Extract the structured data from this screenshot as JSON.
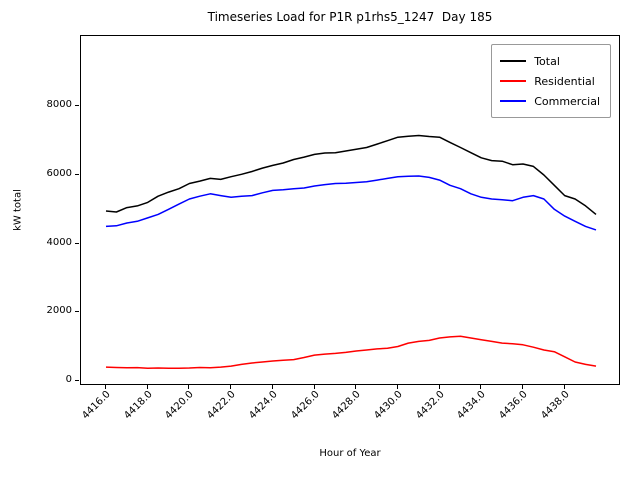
{
  "figure": {
    "title": "Timeseries Load for P1R p1rhs5_1247  Day 185",
    "xlabel": "Hour of Year",
    "ylabel": "kW total"
  },
  "chart_data": {
    "type": "line",
    "title": "Timeseries Load for P1R p1rhs5_1247  Day 185",
    "xlabel": "Hour of Year",
    "ylabel": "kW total",
    "grid": false,
    "legend_position": "upper right",
    "xlim": [
      4414.8,
      4440.7
    ],
    "ylim": [
      -150,
      10050
    ],
    "x_ticks": [
      4416,
      4418,
      4420,
      4422,
      4424,
      4426,
      4428,
      4430,
      4432,
      4434,
      4436,
      4438
    ],
    "x_tick_labels": [
      "4416.0",
      "4418.0",
      "4420.0",
      "4422.0",
      "4424.0",
      "4426.0",
      "4428.0",
      "4430.0",
      "4432.0",
      "4434.0",
      "4436.0",
      "4438.0"
    ],
    "y_ticks": [
      0,
      2000,
      4000,
      6000,
      8000
    ],
    "y_tick_labels": [
      "0",
      "2000",
      "4000",
      "6000",
      "8000"
    ],
    "x": [
      4416.0,
      4416.5,
      4417.0,
      4417.5,
      4418.0,
      4418.5,
      4419.0,
      4419.5,
      4420.0,
      4420.5,
      4421.0,
      4421.5,
      4422.0,
      4422.5,
      4423.0,
      4423.5,
      4424.0,
      4424.5,
      4425.0,
      4425.5,
      4426.0,
      4426.5,
      4427.0,
      4427.5,
      4428.0,
      4428.5,
      4429.0,
      4429.5,
      4430.0,
      4430.5,
      4431.0,
      4431.5,
      4432.0,
      4432.5,
      4433.0,
      4433.5,
      4434.0,
      4434.5,
      4435.0,
      4435.5,
      4436.0,
      4436.5,
      4437.0,
      4437.5,
      4438.0,
      4438.5,
      4439.0,
      4439.5
    ],
    "series": [
      {
        "name": "Total",
        "color": "#000000",
        "values": [
          4950,
          4920,
          5050,
          5100,
          5200,
          5380,
          5500,
          5600,
          5750,
          5820,
          5900,
          5870,
          5950,
          6020,
          6100,
          6200,
          6280,
          6350,
          6450,
          6520,
          6600,
          6640,
          6650,
          6700,
          6750,
          6800,
          6900,
          7000,
          7100,
          7130,
          7150,
          7120,
          7100,
          6950,
          6800,
          6650,
          6500,
          6420,
          6400,
          6300,
          6320,
          6250,
          6000,
          5700,
          5400,
          5300,
          5100,
          4850
        ]
      },
      {
        "name": "Residential",
        "color": "#ff0000",
        "values": [
          400,
          390,
          380,
          385,
          370,
          375,
          365,
          370,
          375,
          390,
          380,
          400,
          430,
          480,
          520,
          550,
          580,
          600,
          620,
          680,
          750,
          780,
          800,
          830,
          870,
          900,
          930,
          950,
          1000,
          1100,
          1150,
          1180,
          1250,
          1280,
          1300,
          1250,
          1200,
          1150,
          1100,
          1080,
          1050,
          980,
          900,
          850,
          700,
          550,
          480,
          430
        ]
      },
      {
        "name": "Commercial",
        "color": "#0000ff",
        "values": [
          4500,
          4520,
          4600,
          4650,
          4750,
          4850,
          5000,
          5150,
          5300,
          5380,
          5450,
          5400,
          5350,
          5380,
          5400,
          5480,
          5550,
          5570,
          5600,
          5620,
          5680,
          5720,
          5750,
          5760,
          5780,
          5800,
          5850,
          5900,
          5950,
          5960,
          5970,
          5930,
          5850,
          5700,
          5600,
          5450,
          5350,
          5300,
          5280,
          5250,
          5350,
          5400,
          5300,
          5000,
          4800,
          4650,
          4500,
          4400
        ]
      }
    ]
  }
}
